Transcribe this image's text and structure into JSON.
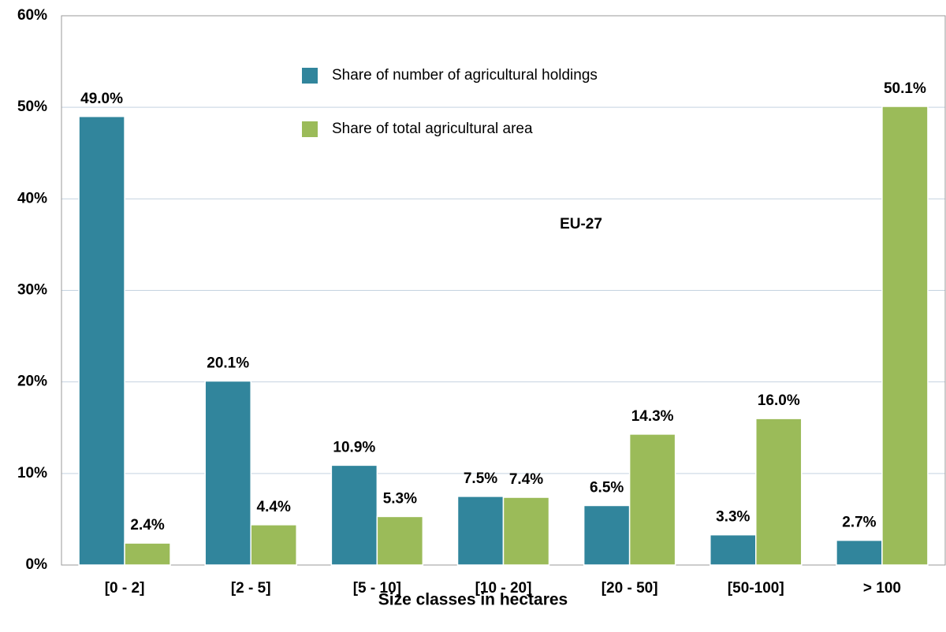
{
  "chart_data": {
    "type": "bar",
    "annotation": "EU-27",
    "x_label": "Size classes in hectares",
    "categories": [
      "[0 - 2]",
      "[2 - 5]",
      "[5 - 10]",
      "[10 - 20]",
      "[20 - 50]",
      "[50-100]",
      "> 100"
    ],
    "series": [
      {
        "name": "Share of number of agricultural holdings",
        "color": "#31859c",
        "values": [
          49.0,
          20.1,
          10.9,
          7.5,
          6.5,
          3.3,
          2.7
        ],
        "value_labels": [
          "49.0%",
          "20.1%",
          "10.9%",
          "7.5%",
          "6.5%",
          "3.3%",
          "2.7%"
        ]
      },
      {
        "name": "Share of total agricultural area",
        "color": "#9bbb59",
        "values": [
          2.4,
          4.4,
          5.3,
          7.4,
          14.3,
          16.0,
          50.1
        ],
        "value_labels": [
          "2.4%",
          "4.4%",
          "5.3%",
          "7.4%",
          "14.3%",
          "16.0%",
          "50.1%"
        ]
      }
    ],
    "ylim": [
      0,
      60
    ],
    "yticks": [
      {
        "value": 0,
        "label": "0%"
      },
      {
        "value": 10,
        "label": "10%"
      },
      {
        "value": 20,
        "label": "20%"
      },
      {
        "value": 30,
        "label": "30%"
      },
      {
        "value": 40,
        "label": "40%"
      },
      {
        "value": 50,
        "label": "50%"
      },
      {
        "value": 60,
        "label": "60%"
      }
    ],
    "grid": true
  }
}
